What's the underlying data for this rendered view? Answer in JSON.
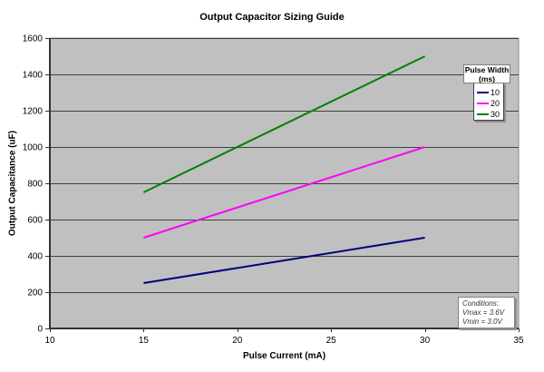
{
  "chart_data": {
    "type": "line",
    "title": "Output Capacitor Sizing Guide",
    "xlabel": "Pulse Current (mA)",
    "ylabel": "Output Capacitance (uF)",
    "xlim": [
      10,
      35
    ],
    "ylim": [
      0,
      1600
    ],
    "x_ticks": [
      "10",
      "15",
      "20",
      "25",
      "30",
      "35"
    ],
    "y_ticks": [
      "0",
      "200",
      "400",
      "600",
      "800",
      "1000",
      "1200",
      "1400",
      "1600"
    ],
    "grid": "horizontal",
    "plot_bg": "#c0c0c0",
    "gridline_color": "#404040",
    "axis_color": "#333333",
    "plot_border_color": "#888888",
    "series": [
      {
        "name": "10",
        "color": "#000080",
        "points": [
          [
            15,
            250
          ],
          [
            30,
            500
          ]
        ]
      },
      {
        "name": "20",
        "color": "#ff00ff",
        "points": [
          [
            15,
            500
          ],
          [
            30,
            1000
          ]
        ]
      },
      {
        "name": "30",
        "color": "#008000",
        "points": [
          [
            15,
            750
          ],
          [
            30,
            1500
          ]
        ]
      }
    ],
    "legend": {
      "position": "top-right",
      "title_lines": [
        "Pulse Width",
        "(ms)"
      ]
    },
    "annotation": {
      "lines": [
        "Conditions:",
        "Vmax = 3.6V",
        "Vmin = 3.0V"
      ]
    }
  }
}
